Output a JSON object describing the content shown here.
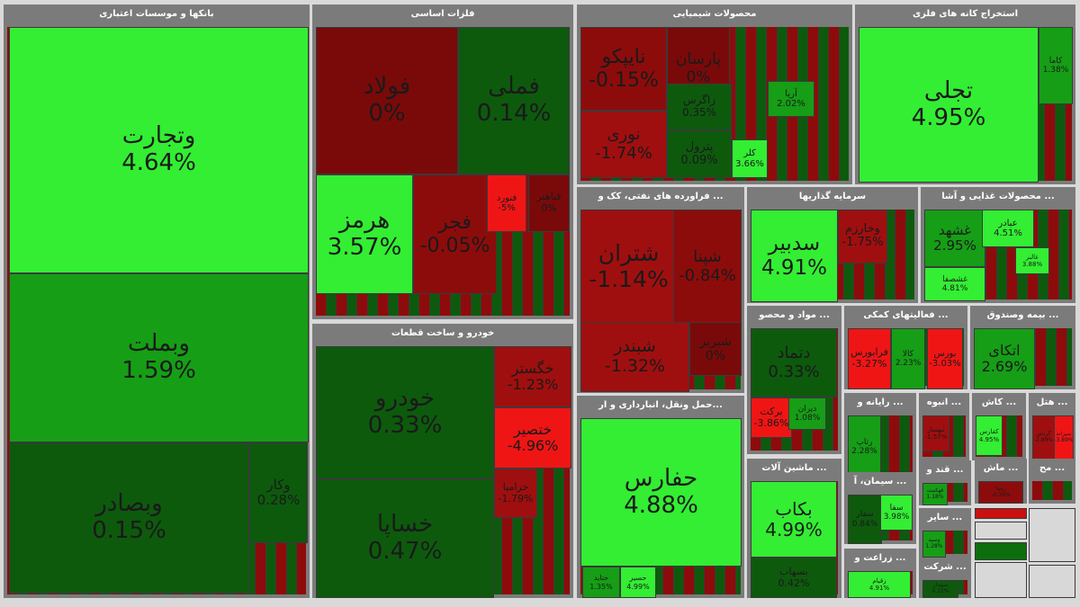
{
  "chart_data": {
    "type": "treemap",
    "sectors": [
      {
        "name": "بانکها و موسسات اعتباری",
        "items": [
          {
            "name": "وتجارت",
            "change": 4.64
          },
          {
            "name": "وبملت",
            "change": 1.59
          },
          {
            "name": "وبصادر",
            "change": 0.15
          },
          {
            "name": "وکار",
            "change": 0.28
          }
        ]
      },
      {
        "name": "فلزات اساسی",
        "items": [
          {
            "name": "فولاد",
            "change": 0
          },
          {
            "name": "فملی",
            "change": 0.14
          },
          {
            "name": "هرمز",
            "change": 3.57
          },
          {
            "name": "فجر",
            "change": -0.05
          },
          {
            "name": "فنورد",
            "change": -5
          },
          {
            "name": "فباهنر",
            "change": 0
          }
        ]
      },
      {
        "name": "محصولات شیمیایی",
        "items": [
          {
            "name": "نایپکو",
            "change": -0.15
          },
          {
            "name": "پارسان",
            "change": 0
          },
          {
            "name": "نوری",
            "change": -1.74
          },
          {
            "name": "زاگرس",
            "change": 0.35
          },
          {
            "name": "پترول",
            "change": 0.09
          },
          {
            "name": "کلر",
            "change": 3.66
          },
          {
            "name": "آریا",
            "change": 2.02
          }
        ]
      },
      {
        "name": "استخراج کانه های فلزی",
        "items": [
          {
            "name": "تجلی",
            "change": 4.95
          },
          {
            "name": "کاما",
            "change": 1.38
          }
        ]
      },
      {
        "name": "... فراورده های نفتی، کک و",
        "items": [
          {
            "name": "شتران",
            "change": -1.14
          },
          {
            "name": "شپنا",
            "change": -0.84
          },
          {
            "name": "شبندر",
            "change": -1.32
          },
          {
            "name": "شبریز",
            "change": 0
          }
        ]
      },
      {
        "name": "سرمایه گذاریها",
        "items": [
          {
            "name": "سدبیر",
            "change": 4.91
          },
          {
            "name": "وخارزم",
            "change": -1.75
          }
        ]
      },
      {
        "name": "... محصولات غذایی و آشا",
        "items": [
          {
            "name": "غشهد",
            "change": 2.95
          },
          {
            "name": "عبادر",
            "change": 4.51
          },
          {
            "name": "غشصفا",
            "change": 4.81
          },
          {
            "name": "غالبر",
            "change": 3.88
          }
        ]
      },
      {
        "name": "خودرو و ساخت قطعات",
        "items": [
          {
            "name": "خودرو",
            "change": 0.33
          },
          {
            "name": "خساپا",
            "change": 0.47
          },
          {
            "name": "خگستر",
            "change": -1.23
          },
          {
            "name": "ختصیر",
            "change": -4.96
          },
          {
            "name": "خزامیا",
            "change": -1.79
          }
        ]
      },
      {
        "name": "... مواد و محصو",
        "items": [
          {
            "name": "دتماد",
            "change": 0.33
          },
          {
            "name": "برکت",
            "change": -3.86
          },
          {
            "name": "دیران",
            "change": 1.08
          }
        ]
      },
      {
        "name": "... فعالیتهای کمکی",
        "items": [
          {
            "name": "فرابورس",
            "change": -3.27
          },
          {
            "name": "کالا",
            "change": 2.23
          },
          {
            "name": "بورس",
            "change": -3.03
          }
        ]
      },
      {
        "name": "... بیمه وصندوق",
        "items": [
          {
            "name": "اتکای",
            "change": 2.69
          }
        ]
      },
      {
        "name": "...حمل ونقل، انبارداری و ار",
        "items": [
          {
            "name": "حفارس",
            "change": 4.88
          },
          {
            "name": "حتاید",
            "change": 1.35
          },
          {
            "name": "حسیر",
            "change": 4.99
          }
        ]
      },
      {
        "name": "... ماشین آلات",
        "items": [
          {
            "name": "بکاب",
            "change": 4.99
          },
          {
            "name": "بسهاب",
            "change": 0.42
          }
        ]
      },
      {
        "name": "... رایانه و",
        "items": [
          {
            "name": "رتاپ",
            "change": 2.28
          }
        ]
      },
      {
        "name": "... انبوه",
        "items": [
          {
            "name": "ثبهساز",
            "change": -1.57
          }
        ]
      },
      {
        "name": "... کاش",
        "items": [
          {
            "name": "کفارس",
            "change": 4.95
          }
        ]
      },
      {
        "name": "... هتل",
        "items": [
          {
            "name": "گردش",
            "change": -2.89
          },
          {
            "name": "سپرانه",
            "change": -3.89
          }
        ]
      },
      {
        "name": "... سیمان، آ",
        "items": [
          {
            "name": "سفار",
            "change": 0.84
          },
          {
            "name": "سفا",
            "change": 3.98
          }
        ]
      },
      {
        "name": "... قند و",
        "items": [
          {
            "name": "قهکمت",
            "change": 1.18
          }
        ]
      },
      {
        "name": "... ماش",
        "items": [
          {
            "name": "رمپنا",
            "change": -0.36
          }
        ]
      },
      {
        "name": "... مح",
        "items": []
      },
      {
        "name": "... سایر",
        "items": [
          {
            "name": "وسپه",
            "change": 1.28
          }
        ]
      },
      {
        "name": "... زراعت و",
        "items": [
          {
            "name": "زقیام",
            "change": 4.91
          }
        ]
      },
      {
        "name": "... شرکت",
        "items": [
          {
            "name": "سپیدار",
            "change": 0.11
          }
        ]
      }
    ]
  }
}
